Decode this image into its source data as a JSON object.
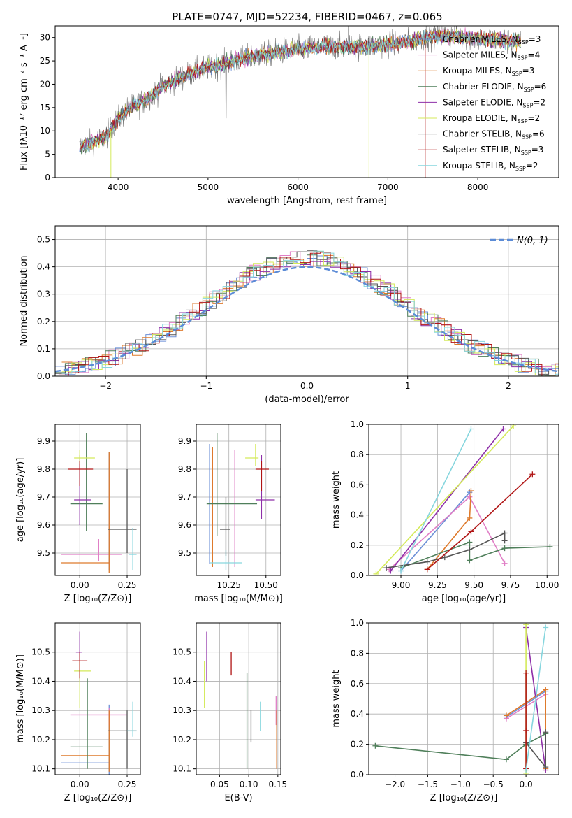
{
  "figure": {
    "title": "PLATE=0747, MJD=52234, FIBERID=0467, z=0.065"
  },
  "colors": {
    "Chabrier MILES": "#6b8fd6",
    "Salpeter MILES": "#e07fc6",
    "Kroupa MILES": "#de7a2c",
    "Chabrier ELODIE": "#4f7f5a",
    "Salpeter ELODIE": "#8e2fa8",
    "Kroupa ELODIE": "#d4ea5a",
    "Chabrier STELIB": "#555555",
    "Salpeter STELIB": "#b01414",
    "Kroupa STELIB": "#86d6de"
  },
  "chart_data": [
    {
      "id": "spectrum",
      "type": "line",
      "xlabel": "wavelength [Angstrom, rest frame]",
      "ylabel": "Flux [fλ10⁻¹⁷ erg cm⁻² s⁻¹ A⁻¹]",
      "xlim": [
        3300,
        8900
      ],
      "ylim": [
        0,
        32.5
      ],
      "xticks": [
        4000,
        5000,
        6000,
        7000,
        8000
      ],
      "yticks": [
        0,
        5,
        10,
        15,
        20,
        25,
        30
      ],
      "legend_position": "top-right",
      "legend": [
        {
          "label": "Chabrier MILES, N",
          "n": "3"
        },
        {
          "label": "Salpeter MILES, N",
          "n": "4"
        },
        {
          "label": "Kroupa MILES, N",
          "n": "3"
        },
        {
          "label": "Chabrier ELODIE, N",
          "n": "6"
        },
        {
          "label": "Salpeter ELODIE, N",
          "n": "2"
        },
        {
          "label": "Kroupa ELODIE, N",
          "n": "2"
        },
        {
          "label": "Chabrier STELIB, N",
          "n": "6"
        },
        {
          "label": "Salpeter STELIB, N",
          "n": "3"
        },
        {
          "label": "Kroupa STELIB, N",
          "n": "2"
        }
      ],
      "continuum": {
        "x": [
          3570,
          3700,
          3850,
          4000,
          4100,
          4300,
          4500,
          4700,
          4900,
          5100,
          5300,
          5500,
          5800,
          6000,
          6300,
          6600,
          6900,
          7200,
          7400,
          7600,
          7900,
          8200,
          8500
        ],
        "y": [
          6.5,
          7.5,
          8.5,
          12.5,
          14.5,
          16.5,
          19.5,
          21.5,
          23.0,
          24.0,
          25.0,
          26.0,
          27.0,
          27.5,
          28.0,
          28.0,
          28.3,
          29.0,
          30.0,
          30.5,
          30.0,
          29.5,
          29.0
        ]
      },
      "range": [
        3570,
        8480
      ]
    },
    {
      "id": "residuals",
      "type": "bar",
      "xlabel": "(data-model)/error",
      "ylabel": "Normed distribution",
      "xlim": [
        -2.5,
        2.5
      ],
      "ylim": [
        0,
        0.55
      ],
      "xticks": [
        -2,
        -1,
        0,
        1,
        2
      ],
      "yticks": [
        0.0,
        0.1,
        0.2,
        0.3,
        0.4,
        0.5
      ],
      "gaussian_label": "N(0, 1)",
      "legend_position": "top-right",
      "bin_width": 0.1
    },
    {
      "id": "age-z",
      "type": "scatter",
      "xlabel": "Z [log₁₀(Z/Z⊙)]",
      "ylabel": "age  [log₁₀(age/yr)]",
      "xlim": [
        -0.13,
        0.32
      ],
      "ylim": [
        9.42,
        9.96
      ],
      "xticks": [
        0.0,
        0.25
      ],
      "yticks": [
        9.5,
        9.6,
        9.7,
        9.8,
        9.9
      ],
      "points": [
        {
          "model": "Chabrier MILES",
          "x": 0.155,
          "y": 9.67,
          "ex": [
            0.155,
            0.155
          ],
          "ey": [
            9.44,
            9.86
          ]
        },
        {
          "model": "Salpeter MILES",
          "x": 0.1,
          "y": 9.495,
          "ex": [
            -0.1,
            0.22
          ],
          "ey": [
            9.47,
            9.55
          ]
        },
        {
          "model": "Kroupa MILES",
          "x": 0.155,
          "y": 9.465,
          "ex": [
            -0.1,
            0.155
          ],
          "ey": [
            9.43,
            9.86
          ]
        },
        {
          "model": "Chabrier ELODIE",
          "x": 0.035,
          "y": 9.676,
          "ex": [
            -0.05,
            0.12
          ],
          "ey": [
            9.58,
            9.93
          ]
        },
        {
          "model": "Salpeter ELODIE",
          "x": 0.0,
          "y": 9.69,
          "ex": [
            -0.03,
            0.06
          ],
          "ey": [
            9.6,
            9.85
          ]
        },
        {
          "model": "Kroupa ELODIE",
          "x": 0.0,
          "y": 9.84,
          "ex": [
            -0.03,
            0.08
          ],
          "ey": [
            9.82,
            9.87
          ]
        },
        {
          "model": "Chabrier STELIB",
          "x": 0.25,
          "y": 9.585,
          "ex": [
            0.15,
            0.3
          ],
          "ey": [
            9.5,
            9.8
          ]
        },
        {
          "model": "Salpeter STELIB",
          "x": 0.0,
          "y": 9.8,
          "ex": [
            -0.06,
            0.07
          ],
          "ey": [
            9.74,
            9.83
          ]
        },
        {
          "model": "Kroupa STELIB",
          "x": 0.28,
          "y": 9.495,
          "ex": [
            0.26,
            0.3
          ],
          "ey": [
            9.44,
            9.59
          ]
        }
      ]
    },
    {
      "id": "age-mass",
      "type": "scatter",
      "xlabel": "mass [log₁₀(M/M⊙)]",
      "ylabel": "",
      "xlim": [
        10.03,
        10.6
      ],
      "ylim": [
        9.42,
        9.96
      ],
      "xticks": [
        10.25,
        10.5
      ],
      "yticks": [
        9.5,
        9.6,
        9.7,
        9.8,
        9.9
      ],
      "points": [
        {
          "model": "Chabrier MILES",
          "x": 10.12,
          "y": 9.7,
          "ex": [
            10.12,
            10.12
          ],
          "ey": [
            9.46,
            9.89
          ]
        },
        {
          "model": "Salpeter MILES",
          "x": 10.29,
          "y": 9.67,
          "ex": [
            10.29,
            10.29
          ],
          "ey": [
            9.45,
            9.87
          ]
        },
        {
          "model": "Kroupa MILES",
          "x": 10.14,
          "y": 9.7,
          "ex": [
            10.14,
            10.14
          ],
          "ey": [
            9.45,
            9.88
          ]
        },
        {
          "model": "Chabrier ELODIE",
          "x": 10.17,
          "y": 9.676,
          "ex": [
            10.1,
            10.44
          ],
          "ey": [
            9.56,
            9.93
          ]
        },
        {
          "model": "Salpeter ELODIE",
          "x": 10.47,
          "y": 9.69,
          "ex": [
            10.43,
            10.56
          ],
          "ey": [
            9.62,
            9.85
          ]
        },
        {
          "model": "Kroupa ELODIE",
          "x": 10.43,
          "y": 9.84,
          "ex": [
            10.36,
            10.45
          ],
          "ey": [
            9.81,
            9.89
          ]
        },
        {
          "model": "Chabrier STELIB",
          "x": 10.23,
          "y": 9.585,
          "ex": [
            10.19,
            10.26
          ],
          "ey": [
            9.49,
            9.7
          ]
        },
        {
          "model": "Salpeter STELIB",
          "x": 10.47,
          "y": 9.8,
          "ex": [
            10.43,
            10.52
          ],
          "ey": [
            9.72,
            9.83
          ]
        },
        {
          "model": "Kroupa STELIB",
          "x": 10.23,
          "y": 9.465,
          "ex": [
            10.12,
            10.34
          ],
          "ey": [
            9.44,
            9.51
          ]
        }
      ]
    },
    {
      "id": "weight-age",
      "type": "line",
      "xlabel": "age  [log₁₀(age/yr)]",
      "ylabel": "mass weight",
      "xlim": [
        8.78,
        10.08
      ],
      "ylim": [
        0,
        1.0
      ],
      "xticks": [
        9.0,
        9.25,
        9.5,
        9.75,
        10.0
      ],
      "yticks": [
        0.0,
        0.2,
        0.4,
        0.6,
        0.8,
        1.0
      ],
      "series": [
        {
          "model": "Chabrier MILES",
          "x": [
            9.0,
            9.47
          ],
          "y": [
            0.03,
            0.55
          ]
        },
        {
          "model": "Salpeter MILES",
          "x": [
            8.92,
            9.47,
            9.71
          ],
          "y": [
            0.04,
            0.52,
            0.08
          ]
        },
        {
          "model": "Kroupa MILES",
          "x": [
            9.18,
            9.47,
            9.48
          ],
          "y": [
            0.04,
            0.38,
            0.56
          ]
        },
        {
          "model": "Chabrier ELODIE",
          "x": [
            9.0,
            9.47,
            9.47,
            9.71,
            10.02
          ],
          "y": [
            0.05,
            0.22,
            0.1,
            0.18,
            0.19
          ]
        },
        {
          "model": "Salpeter ELODIE",
          "x": [
            8.93,
            9.7
          ],
          "y": [
            0.03,
            0.97
          ]
        },
        {
          "model": "Kroupa ELODIE",
          "x": [
            8.83,
            9.77
          ],
          "y": [
            0.01,
            0.99
          ]
        },
        {
          "model": "Chabrier STELIB",
          "x": [
            8.9,
            9.18,
            9.3,
            9.47,
            9.71,
            9.71
          ],
          "y": [
            0.05,
            0.09,
            0.12,
            0.17,
            0.28,
            0.23
          ]
        },
        {
          "model": "Salpeter STELIB",
          "x": [
            9.18,
            9.48,
            9.9
          ],
          "y": [
            0.04,
            0.29,
            0.67
          ]
        },
        {
          "model": "Kroupa STELIB",
          "x": [
            9.0,
            9.48
          ],
          "y": [
            0.03,
            0.97
          ]
        }
      ]
    },
    {
      "id": "mass-z",
      "type": "scatter",
      "xlabel": "Z [log₁₀(Z/Z⊙)]",
      "ylabel": "mass [log₁₀(M/M⊙)]",
      "xlim": [
        -0.13,
        0.32
      ],
      "ylim": [
        10.08,
        10.6
      ],
      "xticks": [
        0.0,
        0.25
      ],
      "yticks": [
        10.1,
        10.2,
        10.3,
        10.4,
        10.5
      ],
      "points": [
        {
          "model": "Chabrier MILES",
          "x": 0.155,
          "y": 10.12,
          "ex": [
            -0.1,
            0.155
          ],
          "ey": [
            10.08,
            10.32
          ]
        },
        {
          "model": "Salpeter MILES",
          "x": 0.155,
          "y": 10.285,
          "ex": [
            -0.05,
            0.25
          ],
          "ey": [
            10.25,
            10.31
          ]
        },
        {
          "model": "Kroupa MILES",
          "x": 0.155,
          "y": 10.145,
          "ex": [
            -0.1,
            0.155
          ],
          "ey": [
            10.09,
            10.3
          ]
        },
        {
          "model": "Chabrier ELODIE",
          "x": 0.04,
          "y": 10.175,
          "ex": [
            -0.05,
            0.12
          ],
          "ey": [
            10.1,
            10.41
          ]
        },
        {
          "model": "Salpeter ELODIE",
          "x": 0.0,
          "y": 10.5,
          "ex": [
            -0.02,
            0.01
          ],
          "ey": [
            10.4,
            10.57
          ]
        },
        {
          "model": "Kroupa ELODIE",
          "x": 0.0,
          "y": 10.435,
          "ex": [
            -0.03,
            0.06
          ],
          "ey": [
            10.31,
            10.47
          ]
        },
        {
          "model": "Chabrier STELIB",
          "x": 0.25,
          "y": 10.23,
          "ex": [
            0.15,
            0.3
          ],
          "ey": [
            10.1,
            10.3
          ]
        },
        {
          "model": "Salpeter STELIB",
          "x": 0.0,
          "y": 10.47,
          "ex": [
            -0.04,
            0.04
          ],
          "ey": [
            10.41,
            10.5
          ]
        },
        {
          "model": "Kroupa STELIB",
          "x": 0.28,
          "y": 10.23,
          "ex": [
            0.25,
            0.3
          ],
          "ey": [
            10.21,
            10.33
          ]
        }
      ]
    },
    {
      "id": "mass-ebv",
      "type": "scatter",
      "xlabel": "E(B-V)",
      "ylabel": "",
      "xlim": [
        0.01,
        0.155
      ],
      "ylim": [
        10.08,
        10.6
      ],
      "xticks": [
        0.05,
        0.1,
        0.15
      ],
      "yticks": [
        10.1,
        10.2,
        10.3,
        10.4,
        10.5
      ],
      "points": [
        {
          "model": "Salpeter ELODIE",
          "x": 0.028,
          "ey": [
            10.4,
            10.57
          ]
        },
        {
          "model": "Kroupa ELODIE",
          "x": 0.024,
          "ey": [
            10.31,
            10.47
          ]
        },
        {
          "model": "Salpeter STELIB",
          "x": 0.07,
          "ey": [
            10.42,
            10.5
          ]
        },
        {
          "model": "Chabrier ELODIE",
          "x": 0.097,
          "ey": [
            10.1,
            10.43
          ]
        },
        {
          "model": "Chabrier STELIB",
          "x": 0.104,
          "ey": [
            10.19,
            10.3
          ]
        },
        {
          "model": "Kroupa STELIB",
          "x": 0.12,
          "ey": [
            10.23,
            10.33
          ]
        },
        {
          "model": "Salpeter MILES",
          "x": 0.147,
          "ey": [
            10.25,
            10.35
          ]
        },
        {
          "model": "Kroupa MILES",
          "x": 0.148,
          "ey": [
            10.1,
            10.3
          ]
        }
      ]
    },
    {
      "id": "weight-z",
      "type": "line",
      "xlabel": "Z [log₁₀(Z/Z⊙)]",
      "ylabel": "mass weight",
      "xlim": [
        -2.4,
        0.5
      ],
      "ylim": [
        0,
        1.0
      ],
      "xticks": [
        -2.0,
        -1.5,
        -1.0,
        -0.5,
        0.0
      ],
      "yticks": [
        0.0,
        0.2,
        0.4,
        0.6,
        0.8,
        1.0
      ],
      "series": [
        {
          "model": "Chabrier ELODIE",
          "x": [
            -2.3,
            -0.3,
            0.0,
            0.3
          ],
          "y": [
            0.19,
            0.1,
            0.2,
            0.27
          ]
        },
        {
          "model": "Chabrier MILES",
          "x": [
            -0.3,
            0.3
          ],
          "y": [
            0.38,
            0.55
          ]
        },
        {
          "model": "Salpeter MILES",
          "x": [
            -0.3,
            0.3,
            0.3
          ],
          "y": [
            0.37,
            0.53,
            0.03
          ]
        },
        {
          "model": "Kroupa MILES",
          "x": [
            -0.3,
            0.3,
            0.3
          ],
          "y": [
            0.39,
            0.56,
            0.04
          ]
        },
        {
          "model": "Salpeter ELODIE",
          "x": [
            0.0,
            0.3
          ],
          "y": [
            0.97,
            0.03
          ]
        },
        {
          "model": "Kroupa ELODIE",
          "x": [
            0.0,
            0.0
          ],
          "y": [
            0.99,
            0.01
          ]
        },
        {
          "model": "Chabrier STELIB",
          "x": [
            0.0,
            0.3,
            0.3
          ],
          "y": [
            0.21,
            0.05,
            0.28
          ]
        },
        {
          "model": "Salpeter STELIB",
          "x": [
            0.0,
            0.0,
            0.0
          ],
          "y": [
            0.04,
            0.29,
            0.67
          ]
        },
        {
          "model": "Kroupa STELIB",
          "x": [
            0.0,
            0.3
          ],
          "y": [
            0.03,
            0.97
          ]
        }
      ]
    }
  ]
}
